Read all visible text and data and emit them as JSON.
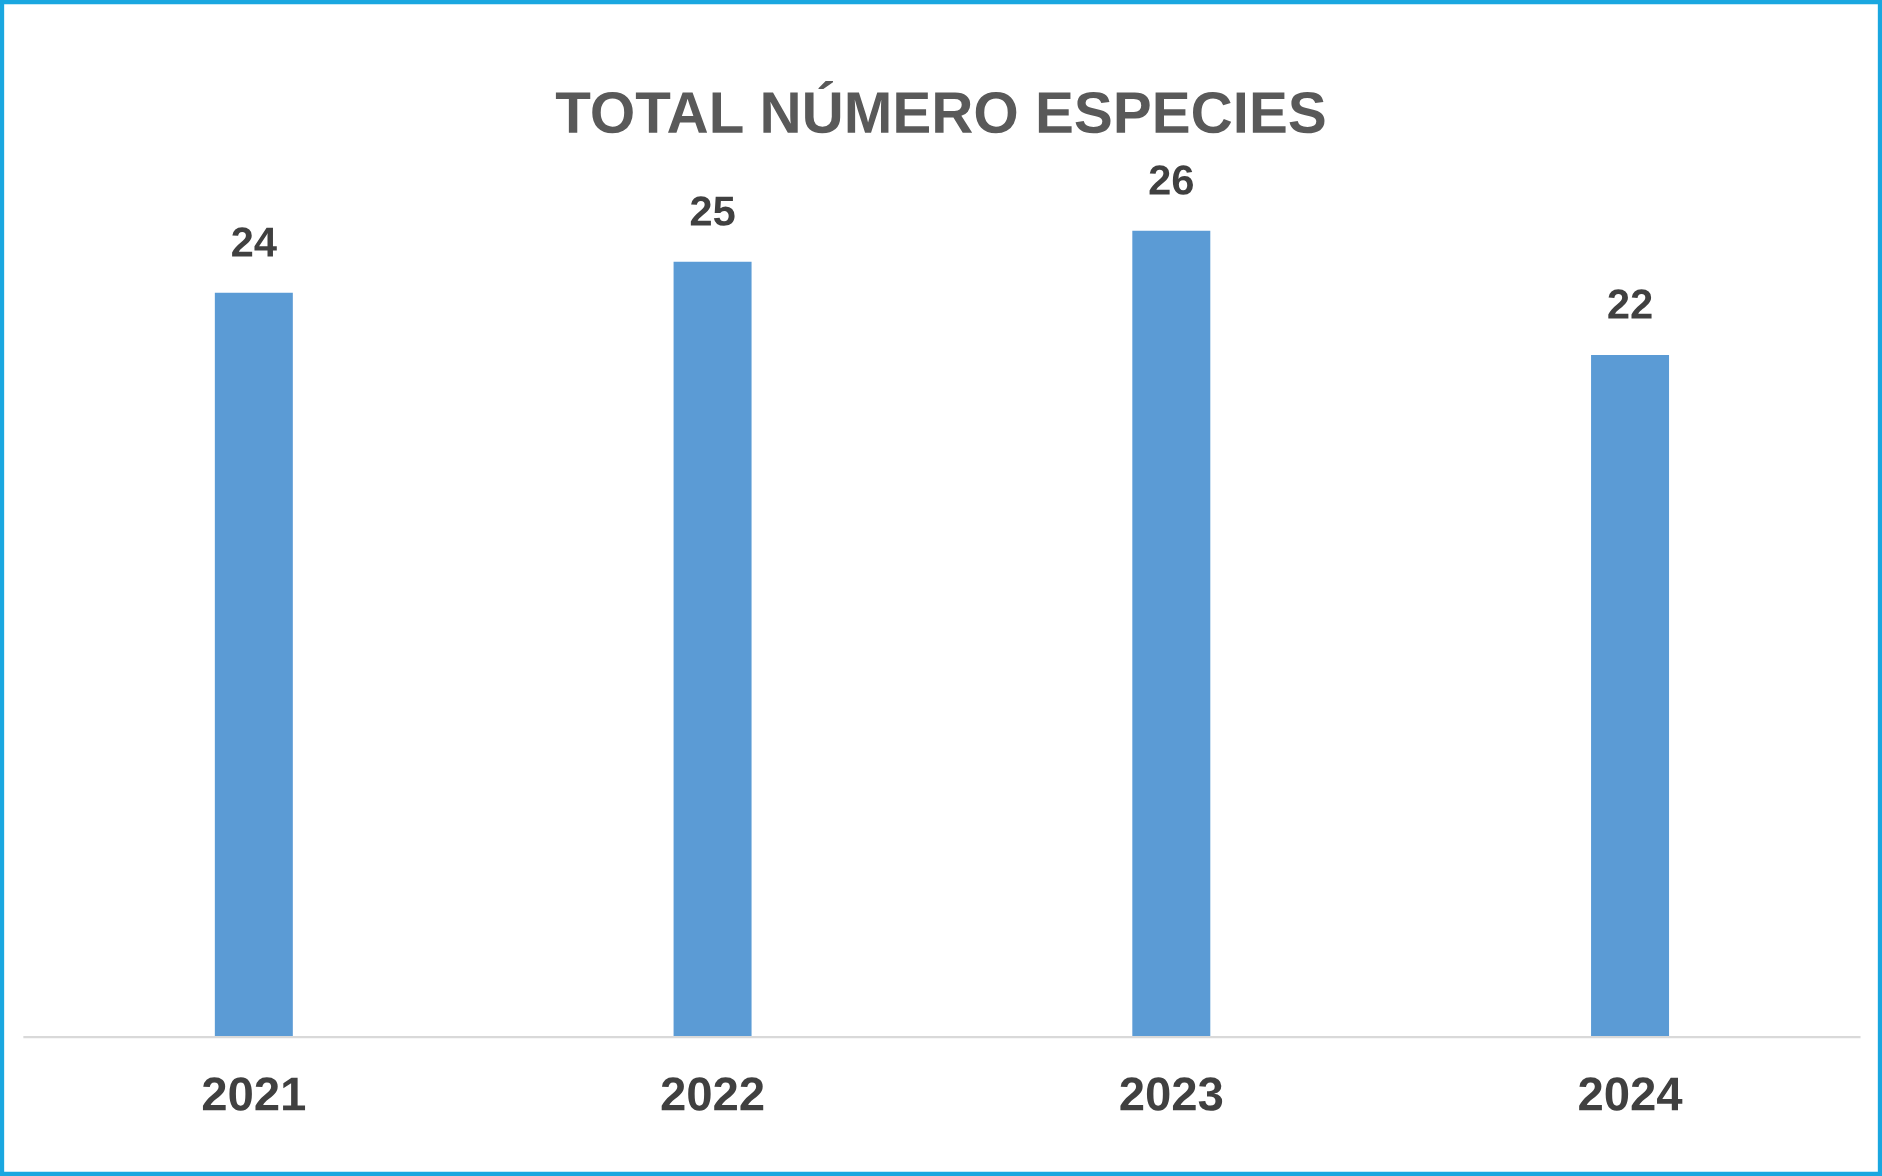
{
  "chart_data": {
    "type": "bar",
    "title": "TOTAL NÚMERO ESPECIES",
    "categories": [
      "2021",
      "2022",
      "2023",
      "2024"
    ],
    "values": [
      24,
      25,
      26,
      22
    ],
    "color": "#5b9bd5",
    "data_labels": true,
    "grid": false,
    "legend": false,
    "tick_labels": "x"
  }
}
